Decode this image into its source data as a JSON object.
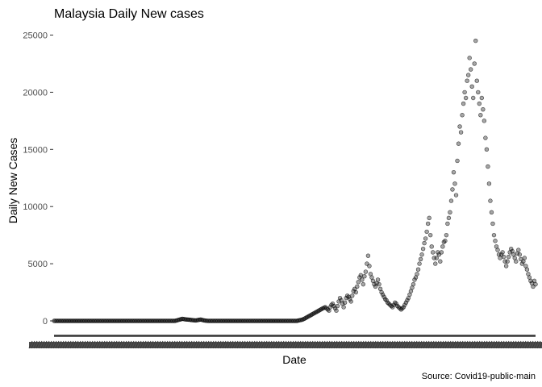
{
  "chart_data": {
    "type": "scatter",
    "title": "Malaysia Daily New cases",
    "xlabel": "Date",
    "ylabel": "Daily New Cases",
    "caption": "Source: Covid19-public-main",
    "ylim": [
      -1000,
      25500
    ],
    "yticks": [
      0,
      5000,
      10000,
      15000,
      20000,
      25000
    ],
    "ytick_labels": [
      "0",
      "5000",
      "10000",
      "15000",
      "20000",
      "25000"
    ],
    "grid": false,
    "legend": "none",
    "point_color": "#000000",
    "point_fill_opacity": 0.35,
    "series": [
      {
        "values_note": "",
        "y": [
          0,
          0,
          0,
          0,
          0,
          0,
          0,
          0,
          0,
          0,
          0,
          0,
          0,
          0,
          0,
          0,
          0,
          0,
          0,
          0,
          0,
          0,
          0,
          0,
          0,
          0,
          0,
          0,
          0,
          0,
          0,
          0,
          0,
          0,
          0,
          0,
          0,
          0,
          0,
          0,
          0,
          0,
          0,
          0,
          0,
          0,
          0,
          0,
          0,
          0,
          0,
          0,
          0,
          0,
          0,
          0,
          0,
          0,
          0,
          0,
          0,
          0,
          0,
          0,
          0,
          0,
          0,
          0,
          0,
          0,
          0,
          0,
          0,
          0,
          0,
          0,
          0,
          0,
          0,
          0,
          0,
          0,
          0,
          0,
          0,
          0,
          0,
          0,
          0,
          0,
          0,
          0,
          0,
          0,
          0,
          0,
          0,
          0,
          0,
          0,
          30,
          60,
          90,
          120,
          150,
          180,
          160,
          140,
          130,
          120,
          110,
          100,
          80,
          70,
          60,
          50,
          40,
          60,
          80,
          100,
          120,
          90,
          60,
          40,
          20,
          10,
          0,
          0,
          0,
          0,
          0,
          0,
          0,
          0,
          0,
          0,
          0,
          0,
          0,
          0,
          0,
          0,
          0,
          0,
          0,
          0,
          0,
          0,
          0,
          0,
          0,
          0,
          0,
          0,
          0,
          0,
          0,
          0,
          0,
          0,
          0,
          0,
          0,
          0,
          0,
          0,
          0,
          0,
          0,
          0,
          0,
          0,
          0,
          0,
          0,
          0,
          0,
          0,
          0,
          0,
          0,
          0,
          0,
          0,
          0,
          0,
          0,
          0,
          0,
          0,
          0,
          0,
          0,
          0,
          0,
          0,
          0,
          0,
          0,
          0,
          40,
          60,
          80,
          100,
          150,
          200,
          260,
          320,
          380,
          440,
          500,
          560,
          620,
          680,
          740,
          800,
          860,
          920,
          980,
          1040,
          1100,
          1150,
          1200,
          1100,
          1000,
          900,
          1200,
          1400,
          1500,
          1300,
          1100,
          900,
          1300,
          1700,
          2000,
          1800,
          1500,
          1200,
          1600,
          2000,
          2200,
          2100,
          1900,
          1700,
          2200,
          2600,
          2800,
          2500,
          3000,
          3400,
          3800,
          4000,
          3600,
          3200,
          3900,
          4300,
          5000,
          5700,
          4800,
          4100,
          3800,
          3500,
          3200,
          3000,
          3300,
          3600,
          3200,
          2800,
          2500,
          2300,
          2100,
          1900,
          1800,
          1600,
          1500,
          1400,
          1300,
          1200,
          1400,
          1600,
          1500,
          1300,
          1200,
          1100,
          1000,
          1100,
          1200,
          1400,
          1600,
          1800,
          2000,
          2300,
          2600,
          2900,
          3200,
          3600,
          3800,
          4100,
          4500,
          5000,
          5400,
          5800,
          6300,
          6800,
          7200,
          7800,
          8500,
          9000,
          7500,
          6500,
          6000,
          5500,
          5000,
          5500,
          6000,
          5800,
          5200,
          6000,
          6500,
          6900,
          7000,
          7500,
          8500,
          9000,
          9500,
          10500,
          11500,
          13000,
          12000,
          11000,
          14000,
          15500,
          17000,
          16500,
          18000,
          19000,
          20000,
          19500,
          21000,
          21500,
          23000,
          22000,
          20500,
          19500,
          22500,
          24500,
          21000,
          20000,
          19000,
          18000,
          19500,
          18500,
          17500,
          16000,
          15000,
          13500,
          12000,
          10500,
          9500,
          8500,
          7500,
          7000,
          6500,
          6200,
          5800,
          5500,
          5800,
          6000,
          5600,
          5200,
          4800,
          5200,
          5600,
          6000,
          6300,
          6100,
          5800,
          5500,
          5200,
          5900,
          6200,
          5800,
          5400,
          5000,
          5200,
          5500,
          4800,
          4500,
          4100,
          3800,
          3500,
          3300,
          3000,
          3500,
          3200
        ]
      }
    ]
  }
}
